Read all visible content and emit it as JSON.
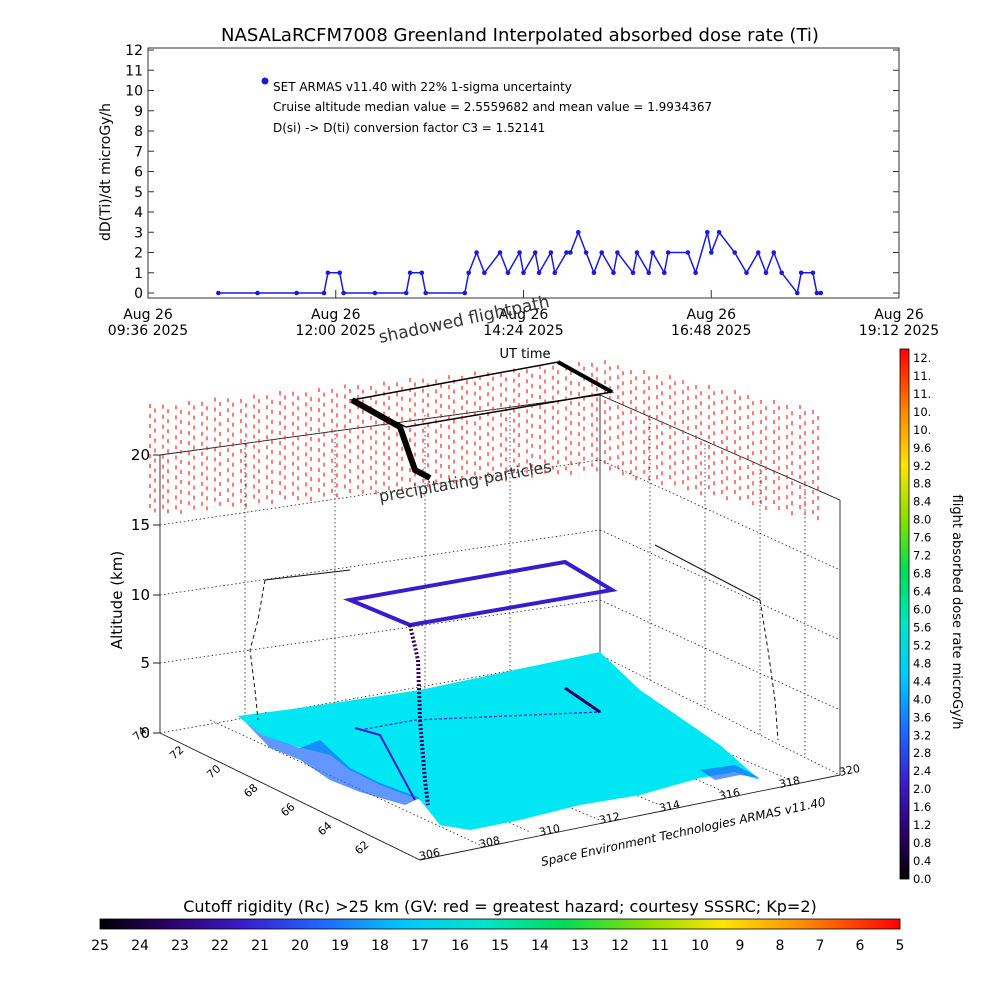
{
  "title": "NASALaRCFM7008  Greenland Interpolated absorbed dose rate (Ti)",
  "chart_data": [
    {
      "type": "line",
      "ylabel": "dD(Ti)/dt microGy/h",
      "xlabel": "UT time",
      "ylim": [
        0,
        12
      ],
      "y_ticks": [
        "0",
        "1",
        "2",
        "3",
        "4",
        "5",
        "6",
        "7",
        "8",
        "9",
        "10",
        "11",
        "12"
      ],
      "x_tick_labels": [
        [
          "Aug 26",
          "09:36 2025"
        ],
        [
          "Aug 26",
          "12:00 2025"
        ],
        [
          "Aug 26",
          "14:24 2025"
        ],
        [
          "Aug 26",
          "16:48 2025"
        ],
        [
          "Aug 26",
          "19:12 2025"
        ]
      ],
      "annotations": [
        "SET ARMAS v11.40 with 22% 1-sigma uncertainty",
        "Cruise altitude median value = 2.5559682 and mean value = 1.9934367",
        "D(si) -> D(ti) conversion factor C3 = 1.52141"
      ],
      "series_color": "#1a1adc",
      "x_hours": [
        10.5,
        11.0,
        11.5,
        11.85,
        11.9,
        12.05,
        12.1,
        12.5,
        12.9,
        12.95,
        13.1,
        13.15,
        13.65,
        13.7,
        13.8,
        13.9,
        14.1,
        14.2,
        14.35,
        14.4,
        14.55,
        14.6,
        14.75,
        14.8,
        14.95,
        15.0,
        15.1,
        15.2,
        15.3,
        15.4,
        15.55,
        15.6,
        15.8,
        15.85,
        16.0,
        16.05,
        16.2,
        16.25,
        16.5,
        16.6,
        16.75,
        16.8,
        16.9,
        17.1,
        17.25,
        17.4,
        17.5,
        17.6,
        17.7,
        17.9,
        17.95,
        18.1,
        18.15,
        18.2
      ],
      "values": [
        0,
        0,
        0,
        0,
        1,
        1,
        0,
        0,
        0,
        1,
        1,
        0,
        0,
        1,
        2,
        1,
        2,
        1,
        2,
        1,
        2,
        1,
        2,
        1,
        2,
        2,
        3,
        2,
        1,
        2,
        1,
        2,
        1,
        2,
        1,
        2,
        1,
        2,
        2,
        1,
        3,
        2,
        3,
        2,
        1,
        2,
        1,
        2,
        1,
        0,
        1,
        1,
        0,
        0
      ]
    },
    {
      "type": "scatter",
      "title_overlay": [
        "shadowed flightpath",
        "precipitating particles"
      ],
      "zlabel": "Altitude (km)",
      "z_ticks": [
        "0",
        "5",
        "10",
        "15",
        "20"
      ],
      "lat_ticks": [
        "74",
        "72",
        "70",
        "68",
        "66",
        "64",
        "62"
      ],
      "lon_ticks": [
        "306",
        "308",
        "310",
        "312",
        "314",
        "316",
        "318",
        "320"
      ],
      "credit": "Space Environment Technologies ARMAS v11.40",
      "route_lat": [
        63.5,
        66.0,
        69.0,
        72.5,
        72.0
      ],
      "route_lon": [
        306.0,
        306.5,
        314.5,
        316.0,
        317.0
      ],
      "route_alt_km": [
        0,
        7.5,
        9.5,
        10.5,
        10.0
      ]
    },
    {
      "type": "heatmap",
      "colorbar_label": "flight absorbed dose rate microGy/h",
      "colorbar_ticks": [
        "0.0",
        "0.4",
        "0.8",
        "1.2",
        "1.6",
        "2.0",
        "2.4",
        "2.8",
        "3.2",
        "3.6",
        "4.0",
        "4.4",
        "4.8",
        "5.2",
        "5.6",
        "6.0",
        "6.4",
        "6.8",
        "7.2",
        "7.6",
        "8.0",
        "8.4",
        "8.8",
        "9.2",
        "9.6",
        "10.",
        "10.",
        "11.",
        "11.",
        "12."
      ]
    },
    {
      "type": "heatmap",
      "colorbar_label": "Cutoff rigidity (Rc) >25 km (GV: red = greatest hazard; courtesy SSSRC; Kp=2)",
      "colorbar_ticks": [
        "25",
        "24",
        "23",
        "22",
        "21",
        "20",
        "19",
        "18",
        "17",
        "16",
        "15",
        "14",
        "13",
        "12",
        "11",
        "10",
        "9",
        "8",
        "7",
        "6",
        "5"
      ]
    }
  ]
}
